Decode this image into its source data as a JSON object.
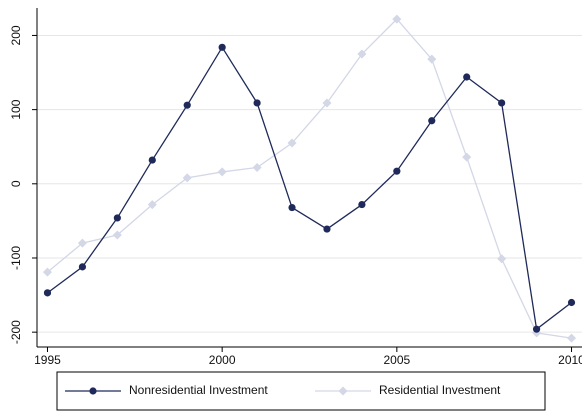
{
  "chart_data": {
    "type": "line",
    "x": [
      1995,
      1996,
      1997,
      1998,
      1999,
      2000,
      2001,
      2002,
      2003,
      2004,
      2005,
      2006,
      2007,
      2008,
      2009,
      2010
    ],
    "series": [
      {
        "name": "Nonresidential Investment",
        "color": "#1f2a5a",
        "marker": "circle",
        "values": [
          -147,
          -112,
          -46,
          32,
          106,
          184,
          109,
          -32,
          -61,
          -28,
          17,
          85,
          144,
          109,
          -196,
          -160
        ]
      },
      {
        "name": "Residential Investment",
        "color": "#d3d7e6",
        "marker": "diamond",
        "values": [
          -119,
          -80,
          -69,
          -28,
          8,
          16,
          22,
          55,
          109,
          175,
          222,
          168,
          36,
          -101,
          -201,
          -208
        ]
      }
    ],
    "xlim": [
      1994.7,
      2010.3
    ],
    "ylim": [
      -220,
      237
    ],
    "xticks": [
      1995,
      2000,
      2005,
      2010
    ],
    "yticks": [
      -200,
      -100,
      0,
      100,
      200
    ],
    "grid": true,
    "legend": "bottom"
  }
}
